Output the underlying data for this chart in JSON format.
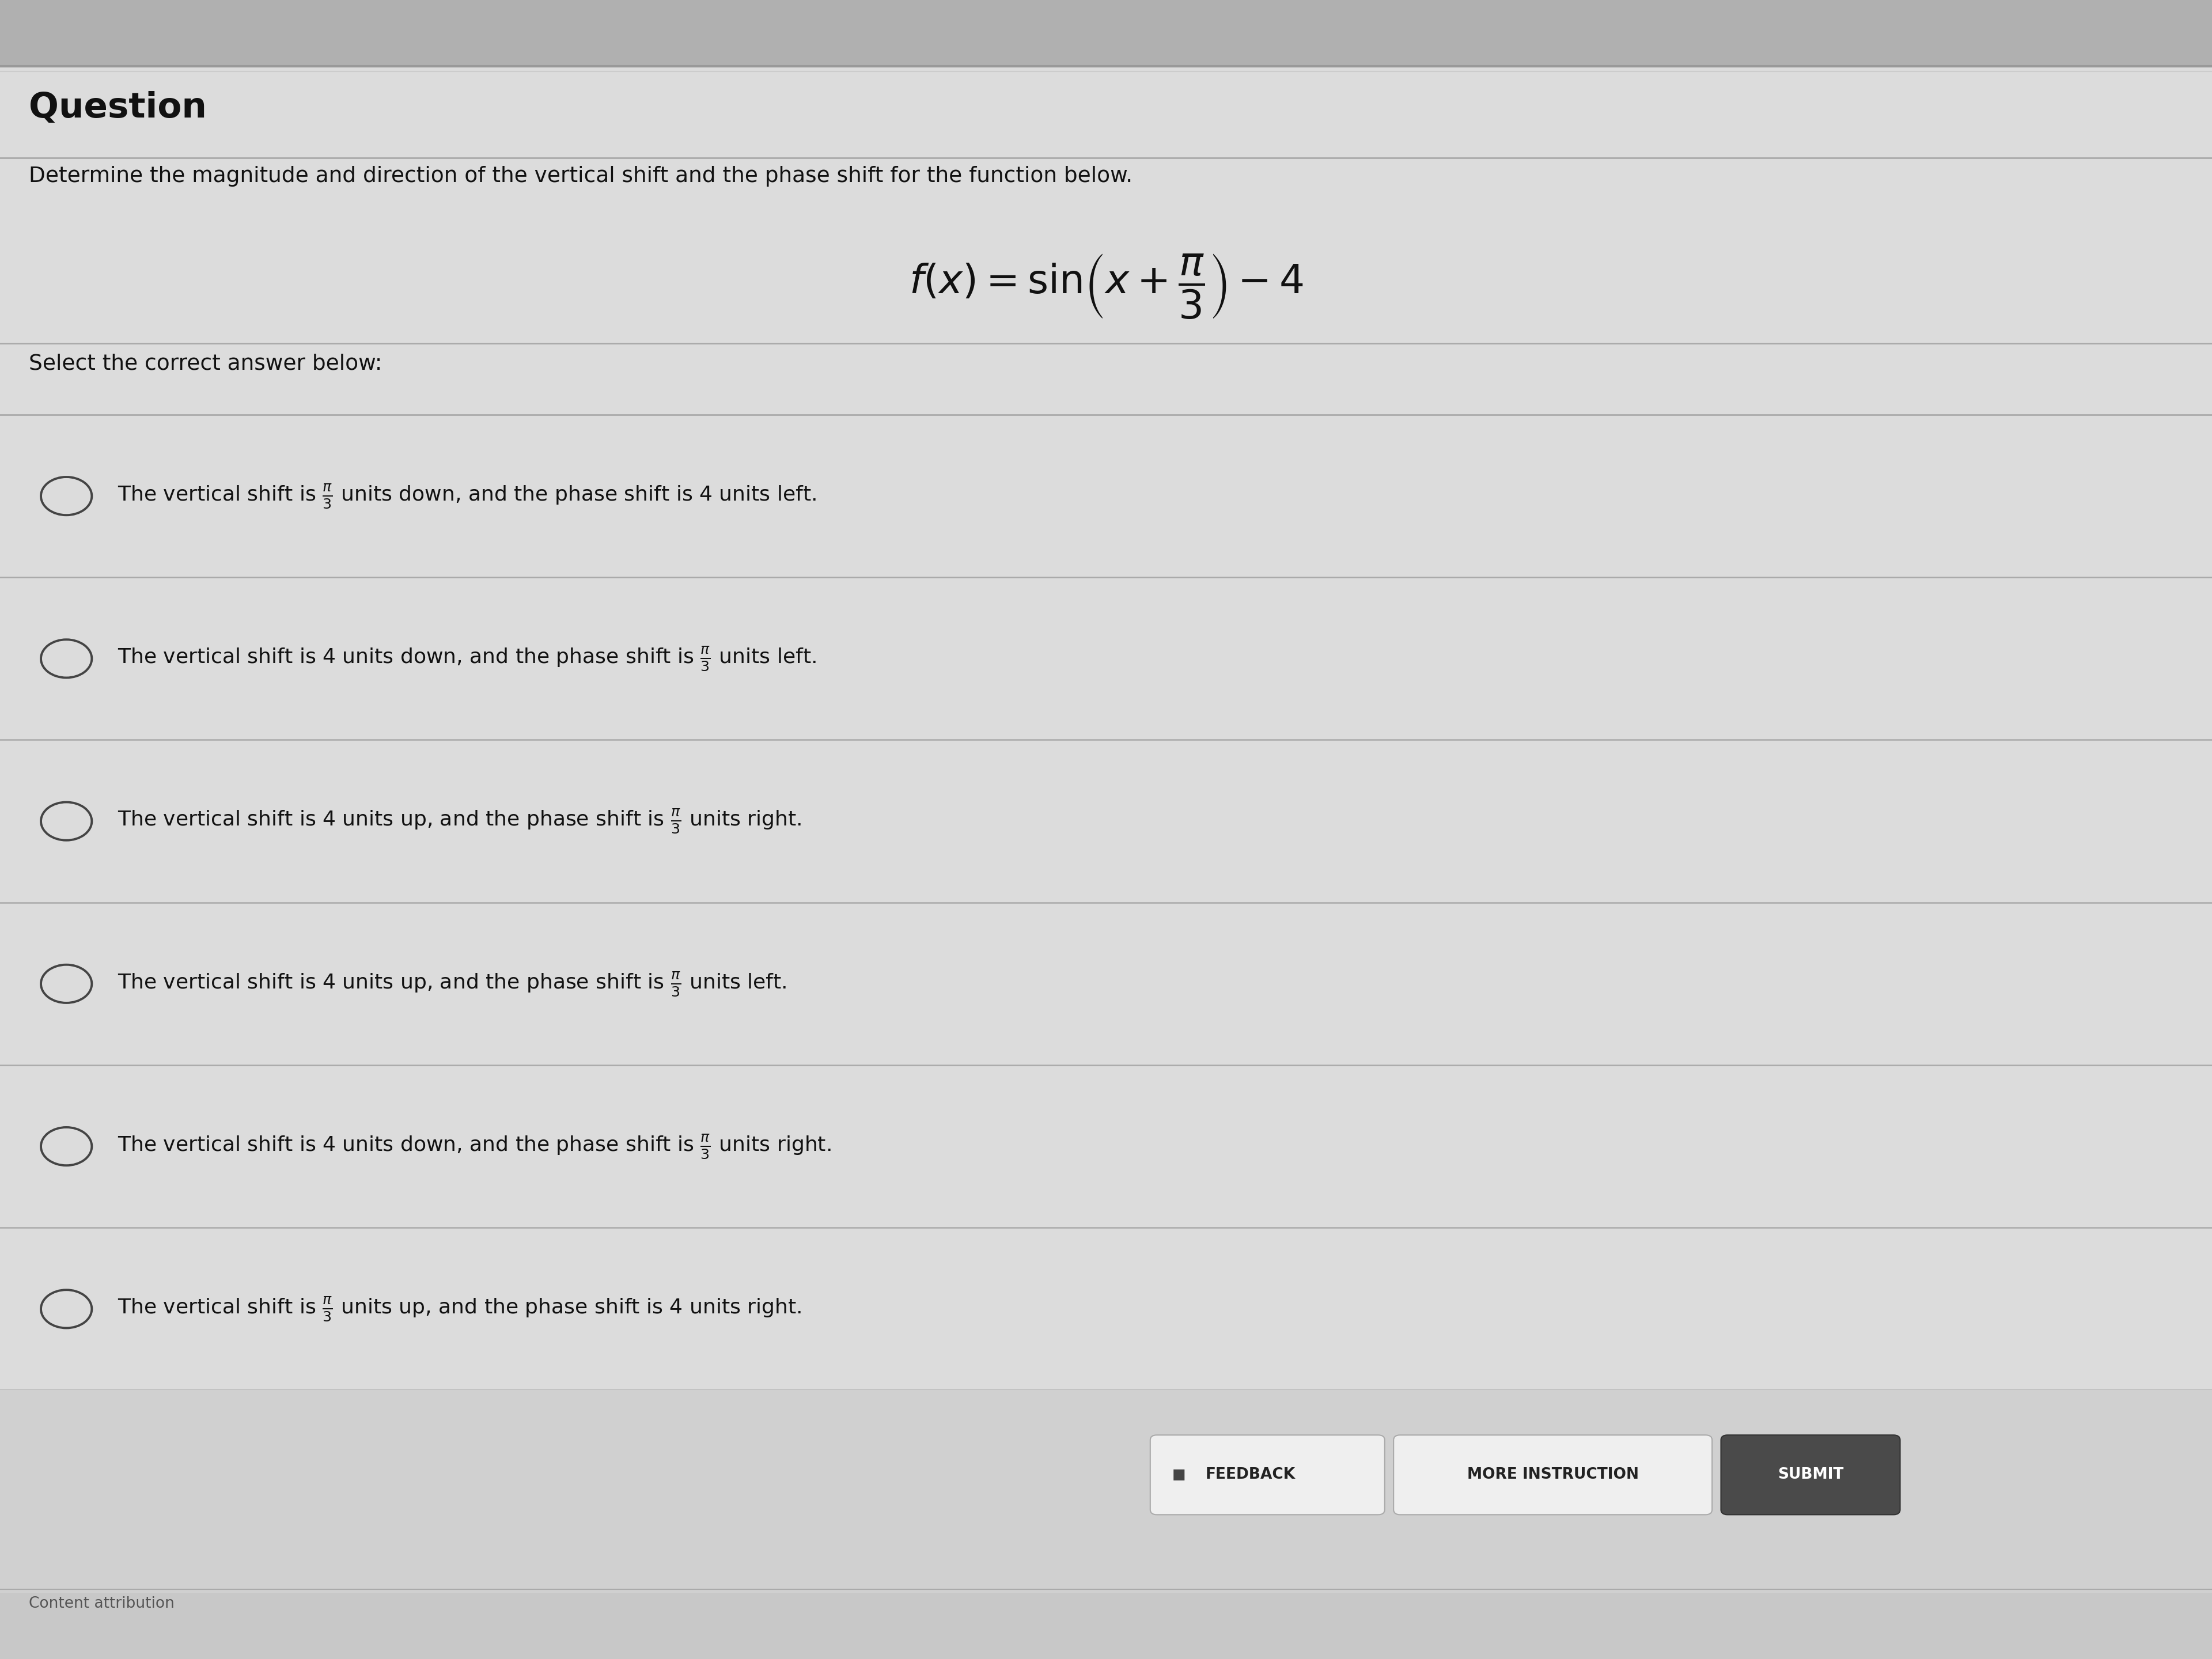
{
  "title": "Question",
  "subtitle": "Determine the magnitude and direction of the vertical shift and the phase shift for the function below.",
  "formula_tex": "$f(x) = \\sin\\!\\left(x + \\dfrac{\\pi}{3}\\right) - 4$",
  "select_text": "Select the correct answer below:",
  "options": [
    "The vertical shift is $\\frac{\\pi}{3}$ units down, and the phase shift is 4 units left.",
    "The vertical shift is 4 units down, and the phase shift is $\\frac{\\pi}{3}$ units left.",
    "The vertical shift is 4 units up, and the phase shift is $\\frac{\\pi}{3}$ units right.",
    "The vertical shift is 4 units up, and the phase shift is $\\frac{\\pi}{3}$ units left.",
    "The vertical shift is 4 units down, and the phase shift is $\\frac{\\pi}{3}$ units right.",
    "The vertical shift is $\\frac{\\pi}{3}$ units up, and the phase shift is 4 units right."
  ],
  "bg_color": "#c8c8c8",
  "content_bg": "#e0e0e0",
  "text_color": "#111111",
  "line_color": "#b0b0b0",
  "content_attribution": "Content attribution",
  "feedback_label": "FEEDBACK",
  "more_label": "MORE INSTRUCTION",
  "submit_label": "SUBMIT"
}
